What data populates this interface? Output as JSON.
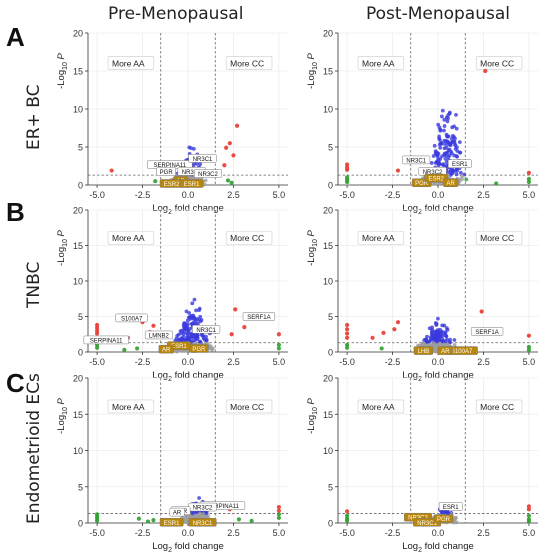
{
  "figure": {
    "col_titles": [
      "Pre-Menopausal",
      "Post-Menopausal"
    ],
    "row_labels": [
      "ER+ BC",
      "TNBC",
      "Endometrioid ECs"
    ],
    "panel_letters": [
      "A",
      "B",
      "C"
    ]
  },
  "colors": {
    "not_significant": "#9e9e9e",
    "fold_change_only": "#2e9e2e",
    "p_value_only": "#3a3adf",
    "p_and_fold_change": "#e8392f",
    "label_box_gold": "#b8860b",
    "threshold_line": "#666666"
  },
  "chart_data": [
    {
      "type": "scatter",
      "panel": "ER+ BC / Pre-Menopausal",
      "xlabel": "Log2 fold change",
      "ylabel": "-Log10 P",
      "xlim": [
        -5.5,
        5.5
      ],
      "ylim": [
        0,
        20
      ],
      "xticks": [
        "-5.0",
        "-2.5",
        "0.0",
        "2.5",
        "5.0"
      ],
      "yticks": [
        "0",
        "5",
        "10",
        "15",
        "20"
      ],
      "p_threshold": 1.3,
      "fc_threshold": [
        -1.5,
        1.5
      ],
      "annotations": [
        "More AA",
        "More CC"
      ],
      "gene_labels": [
        {
          "text": "SERPINA11",
          "x": -1.0,
          "y": 2.7
        },
        {
          "text": "NR3C1",
          "x": 0.8,
          "y": 3.5
        },
        {
          "text": "PGR",
          "x": -1.2,
          "y": 1.8
        },
        {
          "text": "NR3C2",
          "x": 0.2,
          "y": 1.8
        },
        {
          "text": "NR3C2",
          "x": 1.1,
          "y": 1.5
        },
        {
          "text": "AR",
          "x": -0.4,
          "y": 0.6
        },
        {
          "text": "ESR2",
          "x": -0.9,
          "y": 0.2
        },
        {
          "text": "ESR1",
          "x": 0.2,
          "y": 0.2
        }
      ],
      "highlight_points": [
        {
          "x": 2.7,
          "y": 7.8
        },
        {
          "x": 2.3,
          "y": 5.5
        },
        {
          "x": 2.1,
          "y": 4.9
        },
        {
          "x": 2.5,
          "y": 3.9
        },
        {
          "x": -4.2,
          "y": 1.9
        },
        {
          "x": 2.0,
          "y": 2.6
        }
      ],
      "green_points": [
        {
          "x": 2.2,
          "y": 0.6
        },
        {
          "x": -1.8,
          "y": 0.5
        },
        {
          "x": 2.4,
          "y": 0.3
        }
      ],
      "cloud": {
        "center": 0.0,
        "spread": 1.4,
        "max_y": 5.2,
        "count": 190
      }
    },
    {
      "type": "scatter",
      "panel": "ER+ BC / Post-Menopausal",
      "xlabel": "Log2 fold change",
      "ylabel": "-Log10 P",
      "xlim": [
        -5.5,
        5.5
      ],
      "ylim": [
        0,
        20
      ],
      "xticks": [
        "-5.0",
        "-2.5",
        "0.0",
        "2.5",
        "5.0"
      ],
      "yticks": [
        "0",
        "5",
        "10",
        "15",
        "20"
      ],
      "p_threshold": 1.3,
      "fc_threshold": [
        -1.5,
        1.5
      ],
      "annotations": [
        "More AA",
        "More CC"
      ],
      "gene_labels": [
        {
          "text": "NR3C1",
          "x": -1.2,
          "y": 3.3
        },
        {
          "text": "ESR1",
          "x": 1.2,
          "y": 2.8
        },
        {
          "text": "NR3C2",
          "x": -0.3,
          "y": 1.8
        },
        {
          "text": "PGR",
          "x": -0.9,
          "y": 0.3
        },
        {
          "text": "ESR2",
          "x": -0.1,
          "y": 0.9
        },
        {
          "text": "AR",
          "x": 0.7,
          "y": 0.3
        }
      ],
      "highlight_points": [
        {
          "x": 2.6,
          "y": 15.0
        },
        {
          "x": -5.0,
          "y": 2.7
        },
        {
          "x": -5.0,
          "y": 2.3
        },
        {
          "x": -5.0,
          "y": 2.0
        },
        {
          "x": 5.0,
          "y": 1.6
        },
        {
          "x": -2.2,
          "y": 1.9
        }
      ],
      "green_points": [
        {
          "x": -5.0,
          "y": 1.0
        },
        {
          "x": -5.0,
          "y": 0.7
        },
        {
          "x": -5.0,
          "y": 0.4
        },
        {
          "x": 5.0,
          "y": 0.8
        },
        {
          "x": 5.0,
          "y": 0.4
        },
        {
          "x": 3.2,
          "y": 0.2
        }
      ],
      "cloud": {
        "center": 0.3,
        "spread": 1.5,
        "max_y": 12.0,
        "count": 260
      }
    },
    {
      "type": "scatter",
      "panel": "TNBC / Pre-Menopausal",
      "xlabel": "Log2 fold change",
      "ylabel": "-Log10 P",
      "xlim": [
        -5.5,
        5.5
      ],
      "ylim": [
        0,
        20
      ],
      "xticks": [
        "-5.0",
        "-2.5",
        "0.0",
        "2.5",
        "5.0"
      ],
      "yticks": [
        "0",
        "5",
        "10",
        "15",
        "20"
      ],
      "p_threshold": 1.3,
      "fc_threshold": [
        -1.5,
        1.5
      ],
      "annotations": [
        "More AA",
        "More CC"
      ],
      "gene_labels": [
        {
          "text": "S100A7",
          "x": -3.1,
          "y": 4.8
        },
        {
          "text": "SERPINA11",
          "x": -4.5,
          "y": 1.7
        },
        {
          "text": "NR3C1",
          "x": 1.0,
          "y": 3.2
        },
        {
          "text": "SERF1A",
          "x": 3.9,
          "y": 5.0
        },
        {
          "text": "ESR1",
          "x": -0.5,
          "y": 0.9
        },
        {
          "text": "PGR",
          "x": 0.6,
          "y": 0.5
        },
        {
          "text": "AR",
          "x": -1.2,
          "y": 0.4
        },
        {
          "text": "LMNB2",
          "x": -1.6,
          "y": 2.4
        }
      ],
      "highlight_points": [
        {
          "x": -5.0,
          "y": 3.8
        },
        {
          "x": -5.0,
          "y": 3.4
        },
        {
          "x": -5.0,
          "y": 3.0
        },
        {
          "x": -5.0,
          "y": 2.6
        },
        {
          "x": -2.5,
          "y": 4.2
        },
        {
          "x": -3.3,
          "y": 2.0
        },
        {
          "x": 2.6,
          "y": 6.0
        },
        {
          "x": 3.1,
          "y": 3.5
        },
        {
          "x": 5.0,
          "y": 2.5
        },
        {
          "x": -2.1,
          "y": 2.8
        },
        {
          "x": 2.4,
          "y": 2.5
        },
        {
          "x": -1.9,
          "y": 3.7
        }
      ],
      "green_points": [
        {
          "x": -5.0,
          "y": 1.0
        },
        {
          "x": -5.0,
          "y": 0.6
        },
        {
          "x": 5.0,
          "y": 1.0
        },
        {
          "x": 5.0,
          "y": 0.5
        },
        {
          "x": -2.8,
          "y": 0.5
        },
        {
          "x": -3.5,
          "y": 0.3
        }
      ],
      "cloud": {
        "center": 0.1,
        "spread": 1.5,
        "max_y": 7.5,
        "count": 300
      }
    },
    {
      "type": "scatter",
      "panel": "TNBC / Post-Menopausal",
      "xlabel": "Log2 fold change",
      "ylabel": "-Log10 P",
      "xlim": [
        -5.5,
        5.5
      ],
      "ylim": [
        0,
        20
      ],
      "xticks": [
        "-5.0",
        "-2.5",
        "0.0",
        "2.5",
        "5.0"
      ],
      "yticks": [
        "0",
        "5",
        "10",
        "15",
        "20"
      ],
      "p_threshold": 1.3,
      "fc_threshold": [
        -1.5,
        1.5
      ],
      "annotations": [
        "More AA",
        "More CC"
      ],
      "gene_labels": [
        {
          "text": "SERF1A",
          "x": 2.7,
          "y": 2.9
        },
        {
          "text": "S100A7",
          "x": 1.3,
          "y": 0.2
        },
        {
          "text": "LHB",
          "x": -0.8,
          "y": 0.2
        },
        {
          "text": "AR",
          "x": 0.4,
          "y": 0.2
        }
      ],
      "highlight_points": [
        {
          "x": -5.0,
          "y": 3.8
        },
        {
          "x": -5.0,
          "y": 3.2
        },
        {
          "x": -5.0,
          "y": 2.6
        },
        {
          "x": -5.0,
          "y": 2.0
        },
        {
          "x": -3.0,
          "y": 2.7
        },
        {
          "x": -2.4,
          "y": 3.2
        },
        {
          "x": -3.6,
          "y": 2.0
        },
        {
          "x": 2.4,
          "y": 5.7
        },
        {
          "x": 5.0,
          "y": 2.3
        },
        {
          "x": -2.2,
          "y": 4.2
        }
      ],
      "green_points": [
        {
          "x": -5.0,
          "y": 1.0
        },
        {
          "x": -5.0,
          "y": 0.6
        },
        {
          "x": 5.0,
          "y": 0.7
        },
        {
          "x": 5.0,
          "y": 0.3
        },
        {
          "x": -3.1,
          "y": 0.5
        }
      ],
      "cloud": {
        "center": -0.2,
        "spread": 1.4,
        "max_y": 5.5,
        "count": 280
      }
    },
    {
      "type": "scatter",
      "panel": "Endometrioid ECs / Pre-Menopausal",
      "xlabel": "Log2 fold change",
      "ylabel": "-Log10 P",
      "xlim": [
        -5.5,
        5.5
      ],
      "ylim": [
        0,
        20
      ],
      "xticks": [
        "-5.0",
        "-2.5",
        "0.0",
        "2.5",
        "5.0"
      ],
      "yticks": [
        "0",
        "5",
        "10",
        "15",
        "20"
      ],
      "p_threshold": 1.3,
      "fc_threshold": [
        -1.5,
        1.5
      ],
      "annotations": [
        "More AA",
        "More CC"
      ],
      "gene_labels": [
        {
          "text": "SERPINA11",
          "x": 1.9,
          "y": 2.4
        },
        {
          "text": "NR3C2",
          "x": 0.8,
          "y": 2.2
        },
        {
          "text": "PGR",
          "x": -0.4,
          "y": 1.7
        },
        {
          "text": "ESR1",
          "x": -0.9,
          "y": 0.1
        },
        {
          "text": "NR3C1",
          "x": 0.8,
          "y": 0.1
        },
        {
          "text": "AR",
          "x": -0.6,
          "y": 1.5
        }
      ],
      "highlight_points": [
        {
          "x": 5.0,
          "y": 2.2
        },
        {
          "x": 5.0,
          "y": 1.7
        },
        {
          "x": 2.3,
          "y": 1.9
        }
      ],
      "green_points": [
        {
          "x": -5.0,
          "y": 1.2
        },
        {
          "x": -5.0,
          "y": 0.9
        },
        {
          "x": -5.0,
          "y": 0.6
        },
        {
          "x": -5.0,
          "y": 0.3
        },
        {
          "x": 5.0,
          "y": 1.2
        },
        {
          "x": 5.0,
          "y": 0.7
        },
        {
          "x": -2.7,
          "y": 0.6
        },
        {
          "x": -1.9,
          "y": 0.4
        },
        {
          "x": 2.8,
          "y": 0.5
        },
        {
          "x": 3.5,
          "y": 0.3
        },
        {
          "x": -2.2,
          "y": 0.2
        }
      ],
      "cloud": {
        "center": 0.4,
        "spread": 1.2,
        "max_y": 3.2,
        "count": 220
      }
    },
    {
      "type": "scatter",
      "panel": "Endometrioid ECs / Post-Menopausal",
      "xlabel": "Log2 fold change",
      "ylabel": "-Log10 P",
      "xlim": [
        -5.5,
        5.5
      ],
      "ylim": [
        0,
        20
      ],
      "xticks": [
        "-5.0",
        "-2.5",
        "0.0",
        "2.5",
        "5.0"
      ],
      "yticks": [
        "0",
        "5",
        "10",
        "15",
        "20"
      ],
      "p_threshold": 1.3,
      "fc_threshold": [
        -1.5,
        1.5
      ],
      "annotations": [
        "More AA",
        "More CC"
      ],
      "gene_labels": [
        {
          "text": "ESR1",
          "x": 0.7,
          "y": 2.3
        },
        {
          "text": "NR3C2",
          "x": -1.1,
          "y": 0.8
        },
        {
          "text": "NR3C1",
          "x": -0.6,
          "y": 0.1
        },
        {
          "text": "PGR",
          "x": 0.3,
          "y": 0.6
        }
      ],
      "highlight_points": [
        {
          "x": 5.0,
          "y": 2.3
        },
        {
          "x": 5.0,
          "y": 1.9
        },
        {
          "x": -5.0,
          "y": 1.6
        }
      ],
      "green_points": [
        {
          "x": -5.0,
          "y": 1.0
        },
        {
          "x": -5.0,
          "y": 0.6
        },
        {
          "x": -5.0,
          "y": 0.3
        },
        {
          "x": 5.0,
          "y": 1.0
        },
        {
          "x": 5.0,
          "y": 0.5
        },
        {
          "x": 5.0,
          "y": 0.2
        }
      ],
      "cloud": {
        "center": 0.3,
        "spread": 1.0,
        "max_y": 2.6,
        "count": 170
      }
    }
  ]
}
